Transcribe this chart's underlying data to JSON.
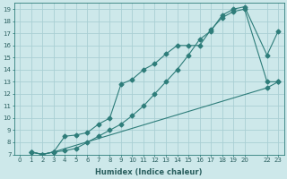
{
  "xlabel": "Humidex (Indice chaleur)",
  "xlim": [
    -0.5,
    23.5
  ],
  "ylim": [
    7,
    19.5
  ],
  "xticks": [
    0,
    1,
    2,
    3,
    4,
    5,
    6,
    7,
    8,
    9,
    10,
    11,
    12,
    13,
    14,
    15,
    16,
    17,
    18,
    19,
    20,
    22,
    23
  ],
  "xtick_labels": [
    "0",
    "1",
    "2",
    "3",
    "4",
    "5",
    "6",
    "7",
    "8",
    "9",
    "10",
    "11",
    "12",
    "13",
    "14",
    "15",
    "16",
    "17",
    "18",
    "19",
    "20",
    "22",
    "23"
  ],
  "yticks": [
    7,
    8,
    9,
    10,
    11,
    12,
    13,
    14,
    15,
    16,
    17,
    18,
    19
  ],
  "background_color": "#cde8ea",
  "grid_color": "#aacfd4",
  "line_color": "#2e7d7a",
  "line1_x": [
    1,
    2,
    3,
    4,
    5,
    6,
    7,
    8,
    9,
    10,
    11,
    12,
    13,
    14,
    15,
    16,
    17,
    18,
    19,
    20,
    22,
    23
  ],
  "line1_y": [
    7.2,
    7.0,
    7.2,
    8.5,
    8.6,
    8.8,
    9.5,
    10.0,
    12.8,
    13.2,
    14.0,
    14.5,
    15.3,
    16.0,
    16.0,
    16.0,
    17.3,
    18.3,
    18.8,
    19.0,
    13.0,
    13.0
  ],
  "line2_x": [
    1,
    2,
    3,
    4,
    5,
    6,
    7,
    8,
    9,
    10,
    11,
    12,
    13,
    14,
    15,
    16,
    17,
    18,
    19,
    20,
    22,
    23
  ],
  "line2_y": [
    7.2,
    7.0,
    7.2,
    7.3,
    7.5,
    8.0,
    8.5,
    9.0,
    9.5,
    10.2,
    11.0,
    12.0,
    13.0,
    14.0,
    15.2,
    16.5,
    17.2,
    18.5,
    19.0,
    19.2,
    15.2,
    17.2
  ],
  "line3_x": [
    1,
    2,
    3,
    22,
    23
  ],
  "line3_y": [
    7.2,
    7.0,
    7.2,
    12.5,
    13.0
  ],
  "marker": "D",
  "marker_size": 2.5,
  "line_width": 0.8,
  "tick_fontsize": 5.0,
  "xlabel_fontsize": 6.0
}
